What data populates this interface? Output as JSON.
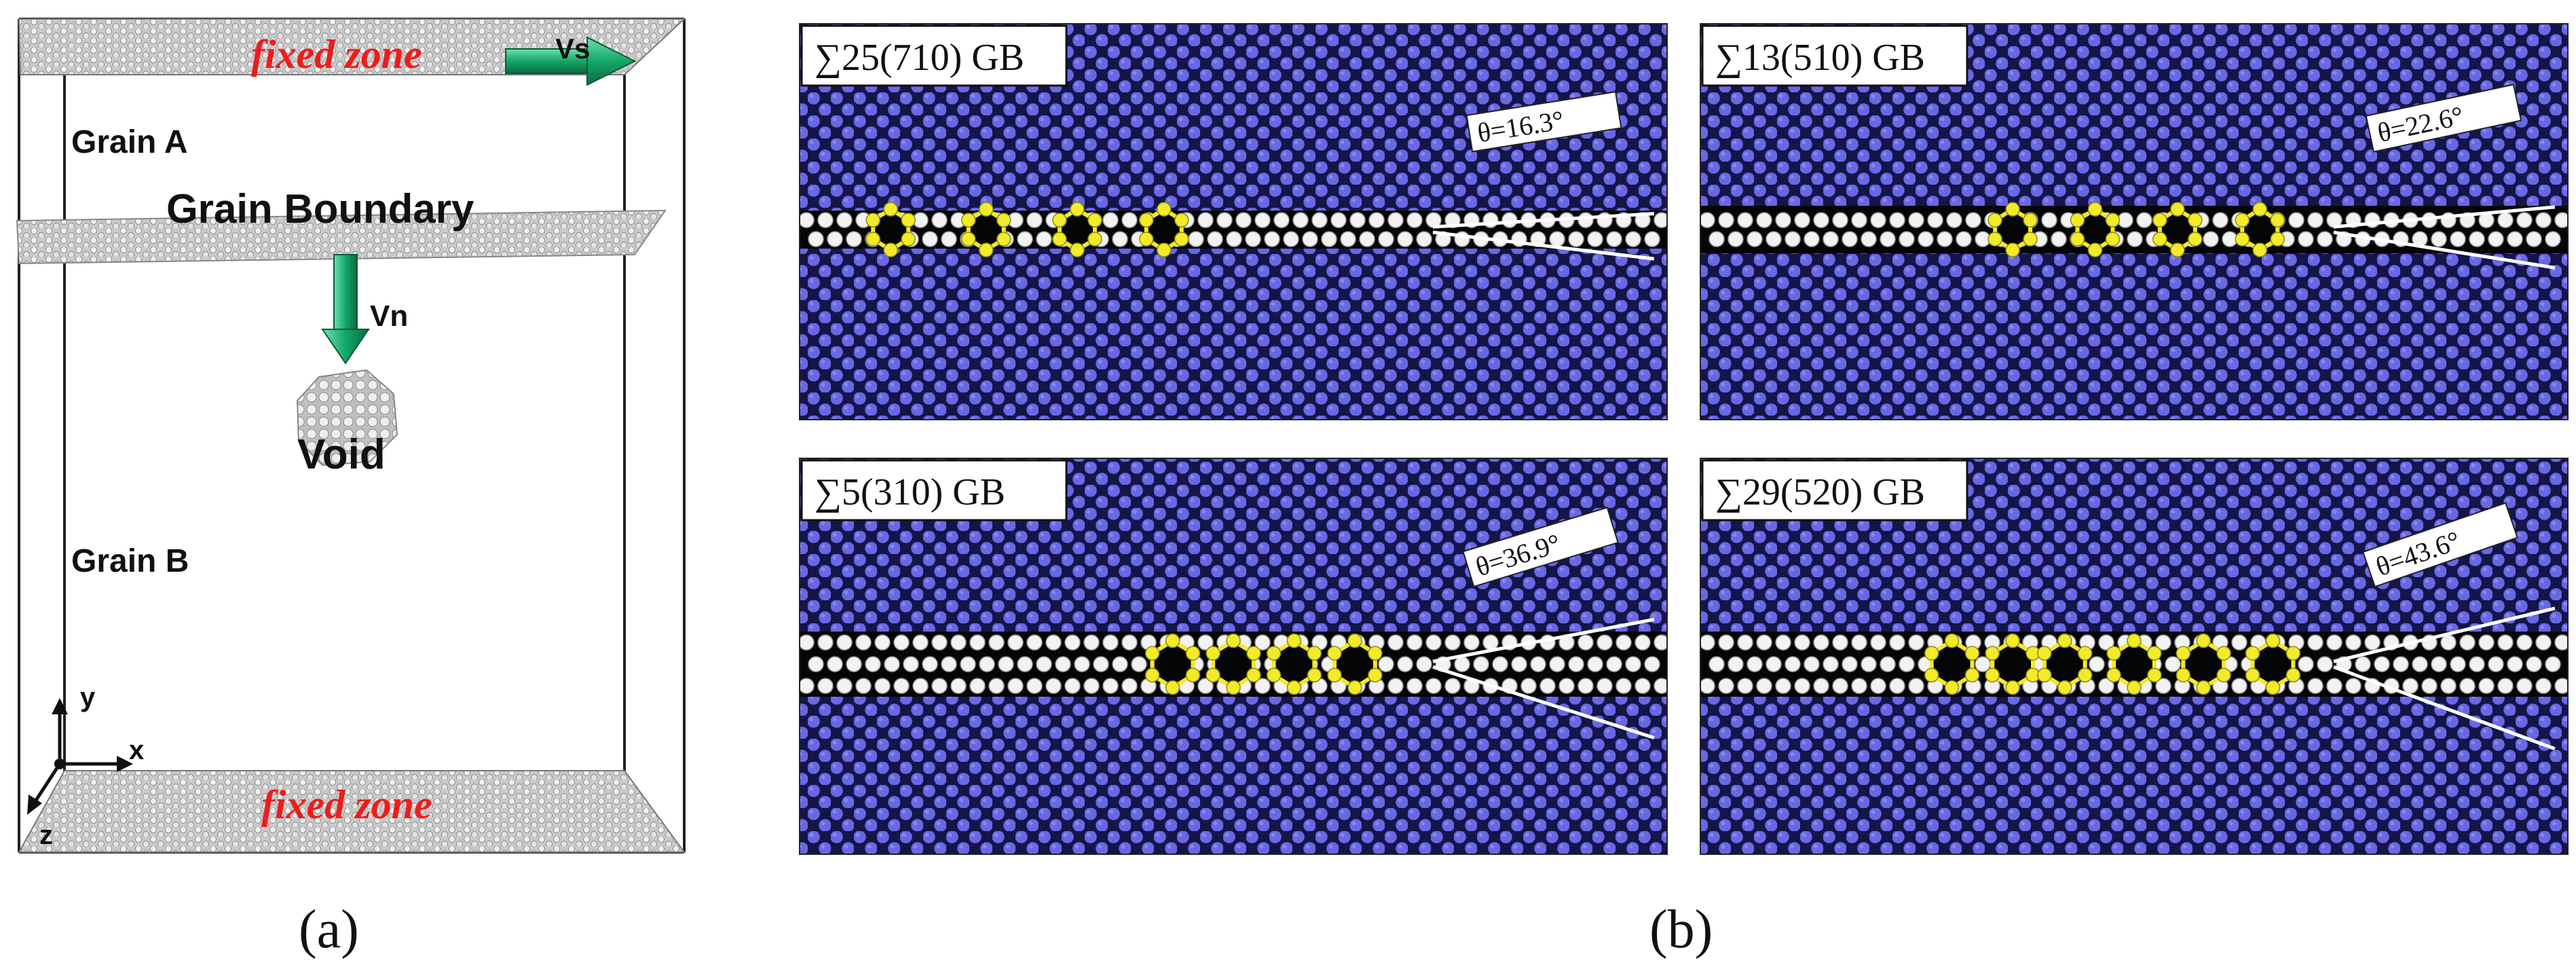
{
  "panel_a": {
    "label": "(a)",
    "fixed_zone_top": "fixed zone",
    "fixed_zone_bottom": "fixed zone",
    "vs_label": "Vs",
    "vn_label": "Vn",
    "grain_a": "Grain A",
    "grain_boundary": "Grain Boundary",
    "void": "Void",
    "grain_b": "Grain B",
    "axes": {
      "x": "x",
      "y": "y",
      "z": "z"
    }
  },
  "panel_b": {
    "label": "(b)",
    "panels": [
      {
        "title": "∑25(710) GB",
        "angle": "θ=16.3°"
      },
      {
        "title": "∑13(510) GB",
        "angle": "θ=22.6°"
      },
      {
        "title": "∑5(310) GB",
        "angle": "θ=36.9°"
      },
      {
        "title": "∑29(520) GB",
        "angle": "θ=43.6°"
      }
    ]
  },
  "colors": {
    "lattice_atom": "#6a6ae6",
    "lattice_bg": "#1a1a55",
    "gb_atom": "#f2f2f2",
    "highlight": "#f3ea2a",
    "fixed_text": "#ee1c1c",
    "arrow_green": "#1aa36a"
  }
}
